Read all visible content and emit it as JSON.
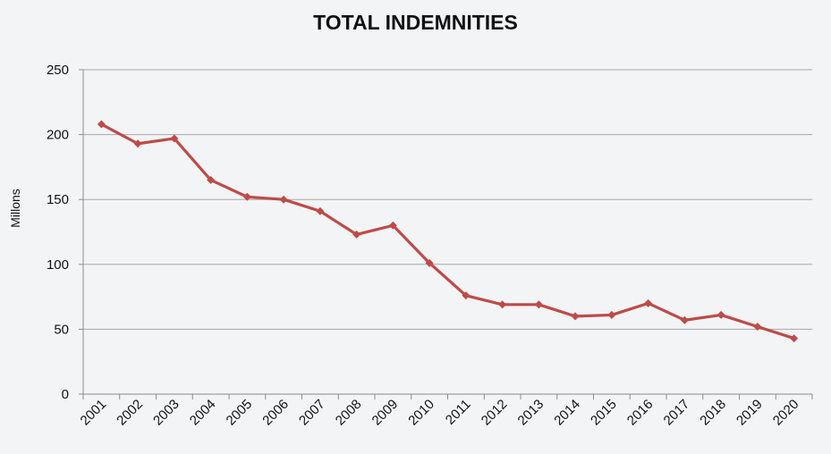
{
  "chart_data": {
    "type": "line",
    "title": "TOTAL INDEMNITIES",
    "xlabel": "",
    "ylabel": "Millons",
    "ylim": [
      0,
      250
    ],
    "yticks": [
      0,
      50,
      100,
      150,
      200,
      250
    ],
    "grid": true,
    "legend": "none",
    "categories": [
      "2001",
      "2002",
      "2003",
      "2004",
      "2005",
      "2006",
      "2007",
      "2008",
      "2009",
      "2010",
      "2011",
      "2012",
      "2013",
      "2014",
      "2015",
      "2016",
      "2017",
      "2018",
      "2019",
      "2020"
    ],
    "series": [
      {
        "values": [
          208,
          193,
          197,
          165,
          152,
          150,
          141,
          123,
          130,
          101,
          76,
          69,
          69,
          60,
          61,
          70,
          57,
          61,
          52,
          43
        ],
        "color": "#be4b48"
      }
    ]
  },
  "colors": {
    "line": "#be4b48",
    "grid": "#a6a6a6",
    "axis": "#8c8c8c",
    "background": "#f3f4f6"
  }
}
